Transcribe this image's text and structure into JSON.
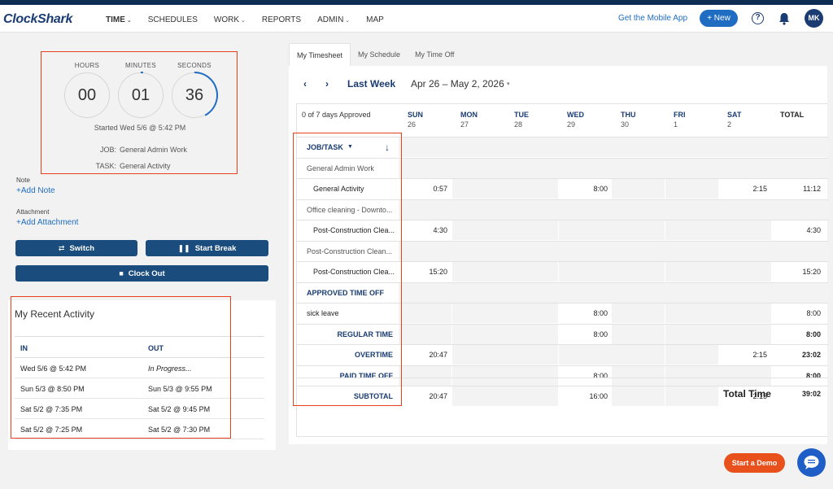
{
  "nav": {
    "logo": "ClockShark",
    "items": [
      {
        "label": "TIME",
        "caret": "⌄"
      },
      {
        "label": "SCHEDULES",
        "caret": ""
      },
      {
        "label": "WORK",
        "caret": "⌄"
      },
      {
        "label": "REPORTS",
        "caret": ""
      },
      {
        "label": "ADMIN",
        "caret": "⌄"
      },
      {
        "label": "MAP",
        "caret": ""
      }
    ],
    "mobile": "Get the Mobile App",
    "new": "+ New",
    "help": "?",
    "avatar": "MK"
  },
  "clock": {
    "hours_label": "HOURS",
    "minutes_label": "MINUTES",
    "seconds_label": "SECONDS",
    "hours": "00",
    "minutes": "01",
    "seconds": "36",
    "started": "Started Wed 5/6 @ 5:42 PM",
    "job_label": "JOB:",
    "job": "General Admin Work",
    "task_label": "TASK:",
    "task": "General Activity"
  },
  "sidebar": {
    "note_label": "Note",
    "add_note": "+Add Note",
    "attachment_label": "Attachment",
    "add_attachment": "+Add Attachment",
    "switch": "Switch",
    "start_break": "Start Break",
    "clock_out": "Clock Out"
  },
  "recent": {
    "title": "My Recent Activity",
    "in_header": "IN",
    "out_header": "OUT",
    "rows": [
      {
        "in": "Wed 5/6 @ 5:42 PM",
        "out": "In Progress..."
      },
      {
        "in": "Sun 5/3 @ 8:50 PM",
        "out": "Sun 5/3 @ 9:55 PM"
      },
      {
        "in": "Sat 5/2 @ 7:35 PM",
        "out": "Sat 5/2 @ 9:45 PM"
      },
      {
        "in": "Sat 5/2 @ 7:25 PM",
        "out": "Sat 5/2 @ 7:30 PM"
      }
    ]
  },
  "tabs": [
    "My Timesheet",
    "My Schedule",
    "My Time Off"
  ],
  "week": {
    "prev": "‹",
    "next": "›",
    "label": "Last Week",
    "range": "Apr 26 – May 2, 2026",
    "caret": "▾"
  },
  "grid": {
    "approved": "0 of 7 days Approved",
    "days": [
      {
        "d": "SUN",
        "n": "26"
      },
      {
        "d": "MON",
        "n": "27"
      },
      {
        "d": "TUE",
        "n": "28"
      },
      {
        "d": "WED",
        "n": "29"
      },
      {
        "d": "THU",
        "n": "30"
      },
      {
        "d": "FRI",
        "n": "1"
      },
      {
        "d": "SAT",
        "n": "2"
      }
    ],
    "total_header": "TOTAL",
    "job_task": "JOB/TASK",
    "rows": [
      {
        "type": "title",
        "label": "JOB/TASK"
      },
      {
        "type": "job",
        "label": "General Admin Work"
      },
      {
        "type": "task",
        "label": "General Activity",
        "values": [
          "0:57",
          "",
          "",
          "8:00",
          "",
          "",
          "2:15"
        ],
        "total": "11:12"
      },
      {
        "type": "job",
        "label": "Office cleaning - Downto..."
      },
      {
        "type": "task",
        "label": "Post-Construction Clea...",
        "values": [
          "4:30",
          "",
          "",
          "",
          "",
          "",
          ""
        ],
        "total": "4:30"
      },
      {
        "type": "job",
        "label": "Post-Construction Clean..."
      },
      {
        "type": "task",
        "label": "Post-Construction Clea...",
        "values": [
          "15:20",
          "",
          "",
          "",
          "",
          "",
          ""
        ],
        "total": "15:20"
      },
      {
        "type": "title",
        "label": "APPROVED TIME OFF"
      },
      {
        "type": "task0",
        "label": "sick leave",
        "values": [
          "",
          "",
          "",
          "8:00",
          "",
          "",
          ""
        ],
        "total": "8:00"
      },
      {
        "type": "sum",
        "label": "REGULAR TIME",
        "values": [
          "",
          "",
          "",
          "8:00",
          "",
          "",
          ""
        ],
        "total": "8:00"
      },
      {
        "type": "sum",
        "label": "OVERTIME",
        "values": [
          "20:47",
          "",
          "",
          "",
          "",
          "",
          "2:15"
        ],
        "total": "23:02"
      },
      {
        "type": "sum",
        "label": "PAID TIME OFF",
        "values": [
          "",
          "",
          "",
          "8:00",
          "",
          "",
          ""
        ],
        "total": "8:00"
      },
      {
        "type": "sum",
        "label": "SUBTOTAL",
        "values": [
          "20:47",
          "",
          "",
          "16:00",
          "",
          "",
          "2:15"
        ],
        "total": ""
      }
    ],
    "total_time_label": "Total Time",
    "total_time": "39:02"
  },
  "demo": "Start a Demo",
  "colors": {
    "primary": "#1a4d7e",
    "accent": "#1f6dc2",
    "highlight": "#e8401c",
    "demo": "#e8501c"
  }
}
